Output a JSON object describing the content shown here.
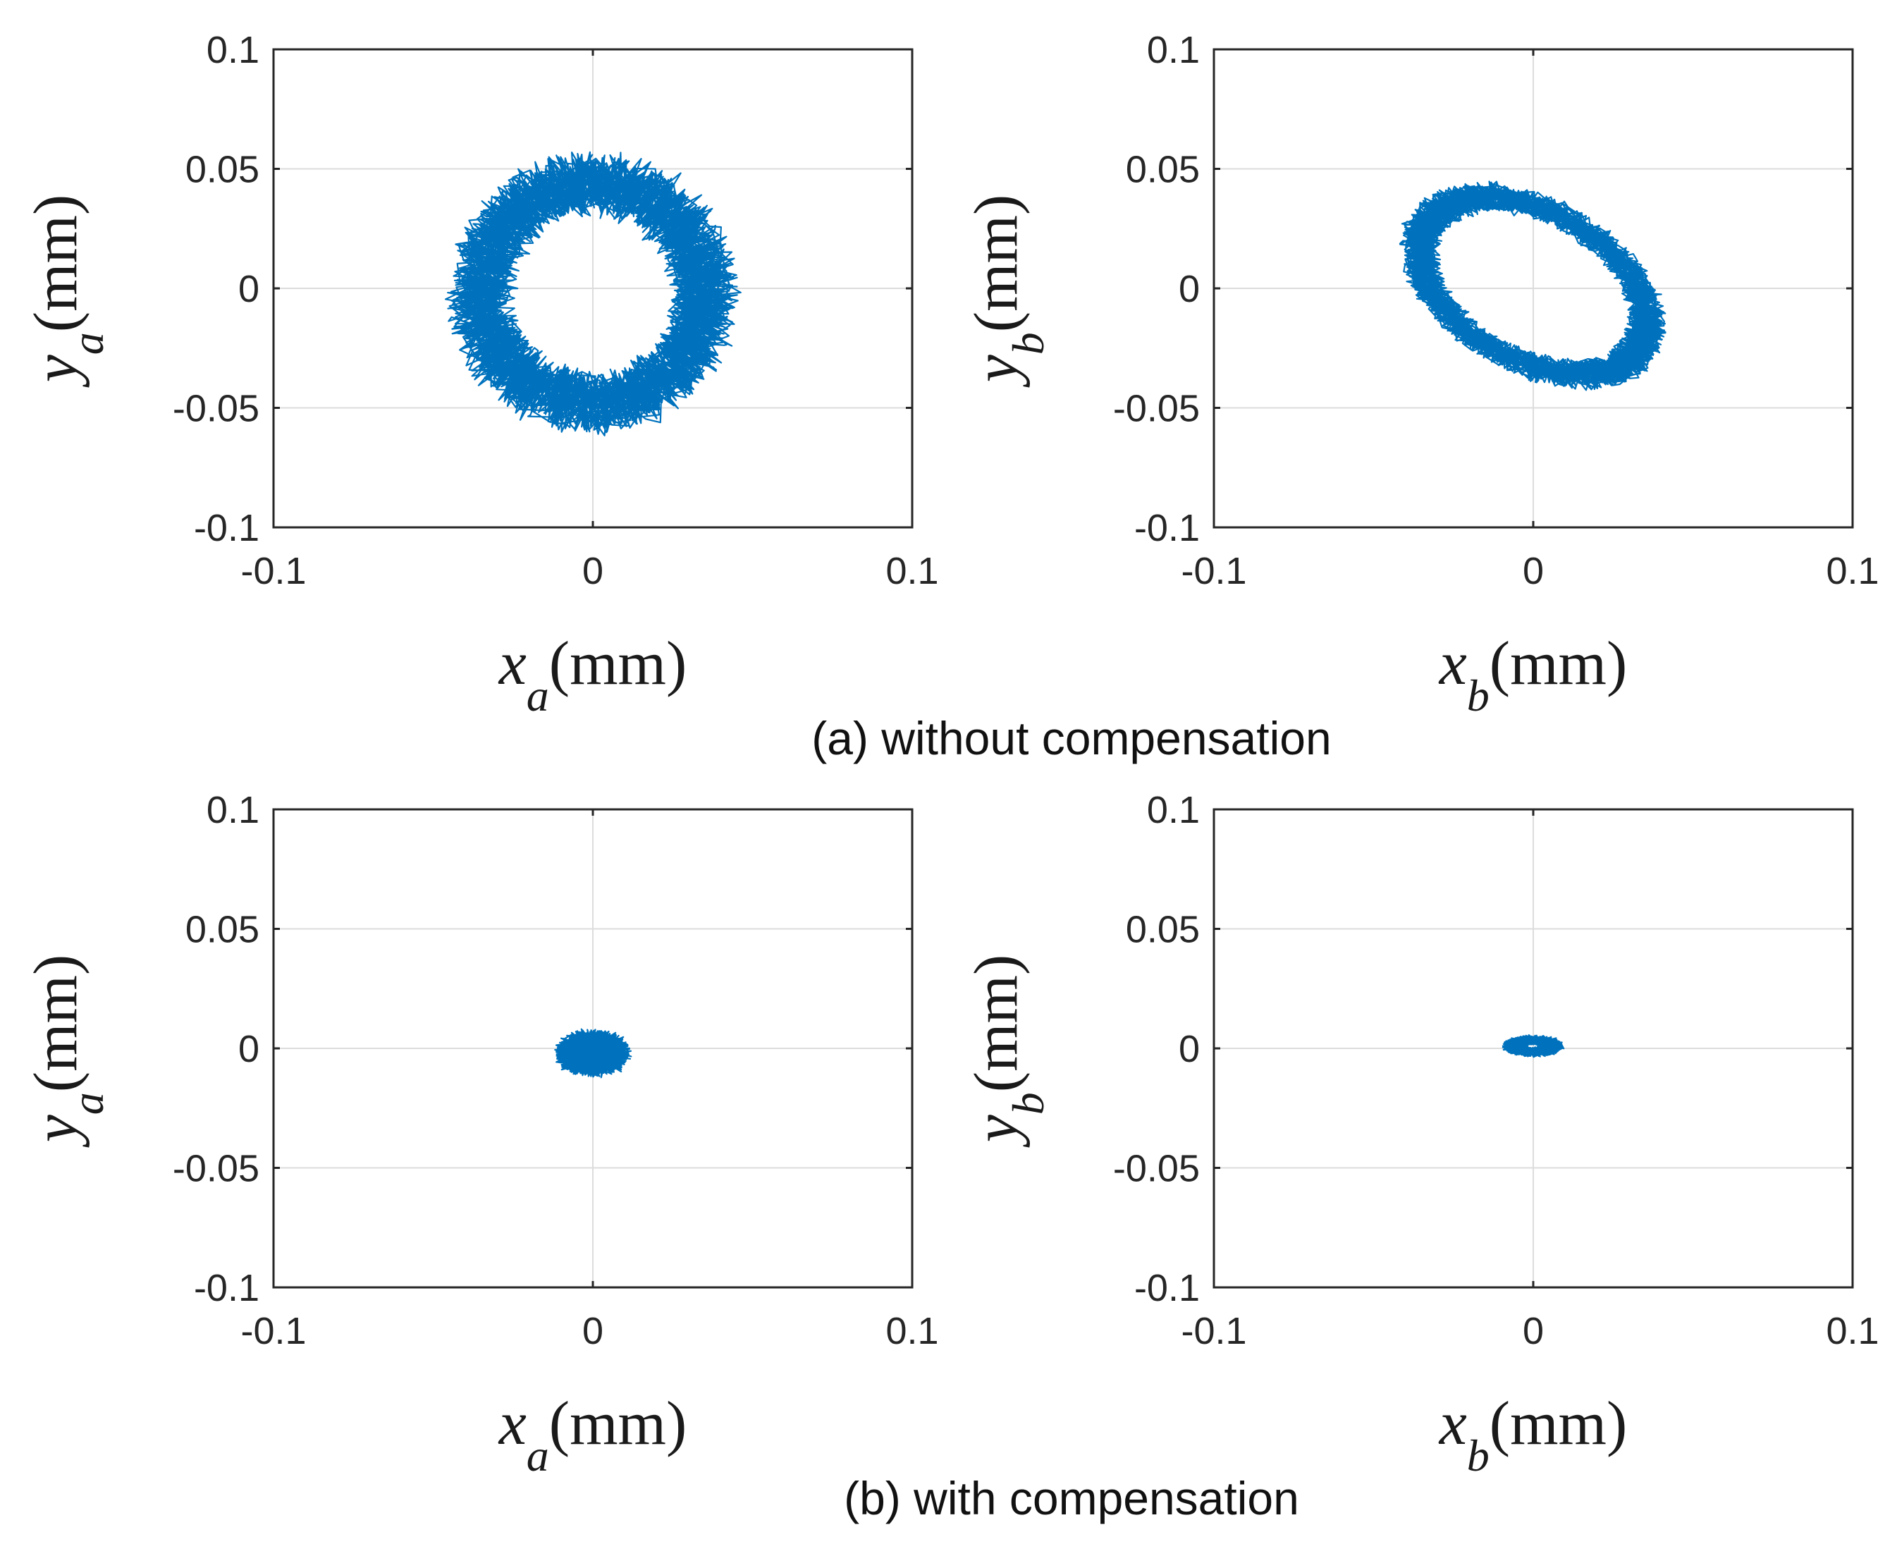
{
  "colors": {
    "trace": "#0072BD",
    "axis": "#262626",
    "grid": "#dcdcdc"
  },
  "captions": {
    "a": "(a) without compensation",
    "b": "(b) with compensation"
  },
  "chart_data": [
    {
      "id": "a-left",
      "type": "line",
      "description_kind": "orbit trajectory",
      "xlabel_var": "x",
      "xlabel_sub": "a",
      "xlabel_unit": "(mm)",
      "ylabel_var": "y",
      "ylabel_sub": "a",
      "ylabel_unit": "(mm)",
      "xlim": [
        -0.1,
        0.1
      ],
      "ylim": [
        -0.1,
        0.1
      ],
      "xticks": [
        -0.1,
        0,
        0.1
      ],
      "xtick_labels": [
        "-0.1",
        "0",
        "0.1"
      ],
      "yticks": [
        -0.1,
        -0.05,
        0,
        0.05,
        0.1
      ],
      "ytick_labels": [
        "-0.1",
        "-0.05",
        "0",
        "0.05",
        "0.1"
      ],
      "grid": true,
      "orbit": {
        "cx": 0.0,
        "cy": -0.002,
        "rx": 0.035,
        "ry": 0.046,
        "tilt_deg": 0,
        "noise": 0.011,
        "turns": 40,
        "points_per_turn": 110,
        "seed": 11
      }
    },
    {
      "id": "a-right",
      "type": "line",
      "description_kind": "orbit trajectory",
      "xlabel_var": "x",
      "xlabel_sub": "b",
      "xlabel_unit": "(mm)",
      "ylabel_var": "y",
      "ylabel_sub": "b",
      "ylabel_unit": "(mm)",
      "xlim": [
        -0.1,
        0.1
      ],
      "ylim": [
        -0.1,
        0.1
      ],
      "xticks": [
        -0.1,
        0,
        0.1
      ],
      "xtick_labels": [
        "-0.1",
        "0",
        "0.1"
      ],
      "yticks": [
        -0.1,
        -0.05,
        0,
        0.05,
        0.1
      ],
      "ytick_labels": [
        "-0.1",
        "-0.05",
        "0",
        "0.05",
        "0.1"
      ],
      "grid": true,
      "orbit": {
        "cx": 0.0,
        "cy": 0.001,
        "rx": 0.028,
        "ry": 0.043,
        "tilt_deg": 42,
        "noise": 0.006,
        "turns": 40,
        "points_per_turn": 110,
        "seed": 23
      }
    },
    {
      "id": "b-left",
      "type": "line",
      "description_kind": "orbit trajectory",
      "xlabel_var": "x",
      "xlabel_sub": "a",
      "xlabel_unit": "(mm)",
      "ylabel_var": "y",
      "ylabel_sub": "a",
      "ylabel_unit": "(mm)",
      "xlim": [
        -0.1,
        0.1
      ],
      "ylim": [
        -0.1,
        0.1
      ],
      "xticks": [
        -0.1,
        0,
        0.1
      ],
      "xtick_labels": [
        "-0.1",
        "0",
        "0.1"
      ],
      "yticks": [
        -0.1,
        -0.05,
        0,
        0.05,
        0.1
      ],
      "ytick_labels": [
        "-0.1",
        "-0.05",
        "0",
        "0.05",
        "0.1"
      ],
      "grid": true,
      "orbit": {
        "cx": 0.0,
        "cy": -0.002,
        "rx": 0.006,
        "ry": 0.005,
        "tilt_deg": 0,
        "noise": 0.005,
        "turns": 40,
        "points_per_turn": 80,
        "seed": 37
      }
    },
    {
      "id": "b-right",
      "type": "line",
      "description_kind": "orbit trajectory",
      "xlabel_var": "x",
      "xlabel_sub": "b",
      "xlabel_unit": "(mm)",
      "ylabel_var": "y",
      "ylabel_sub": "b",
      "ylabel_unit": "(mm)",
      "xlim": [
        -0.1,
        0.1
      ],
      "ylim": [
        -0.1,
        0.1
      ],
      "xticks": [
        -0.1,
        0,
        0.1
      ],
      "xtick_labels": [
        "-0.1",
        "0",
        "0.1"
      ],
      "yticks": [
        -0.1,
        -0.05,
        0,
        0.05,
        0.1
      ],
      "ytick_labels": [
        "-0.1",
        "-0.05",
        "0",
        "0.05",
        "0.1"
      ],
      "grid": true,
      "orbit": {
        "cx": 0.0,
        "cy": 0.001,
        "rx": 0.006,
        "ry": 0.0025,
        "tilt_deg": 0,
        "noise": 0.003,
        "turns": 40,
        "points_per_turn": 80,
        "seed": 53
      }
    }
  ]
}
